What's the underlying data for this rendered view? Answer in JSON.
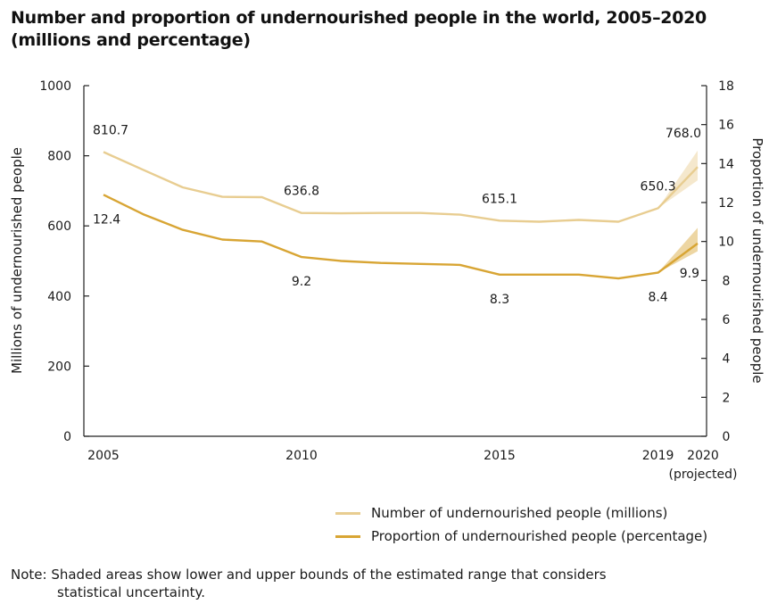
{
  "title": {
    "line1": "Number and proportion of undernourished people in the world, 2005–2020",
    "line2": "(millions and percentage)"
  },
  "colors": {
    "number_series": "#e8cd91",
    "proportion_series": "#d8a534",
    "axis": "#222222"
  },
  "chart_data": {
    "type": "line",
    "x": [
      2005,
      2006,
      2007,
      2008,
      2009,
      2010,
      2011,
      2012,
      2013,
      2014,
      2015,
      2016,
      2017,
      2018,
      2019,
      2020
    ],
    "x_tick_labels": [
      {
        "x": 2005,
        "label": "2005"
      },
      {
        "x": 2010,
        "label": "2010"
      },
      {
        "x": 2015,
        "label": "2015"
      },
      {
        "x": 2019,
        "label": "2019"
      },
      {
        "x": 2020,
        "label": "2020",
        "sublabel": "(projected)"
      }
    ],
    "y_left": {
      "label": "Millions of undernourished people",
      "lim": [
        0,
        1000
      ],
      "ticks": [
        "0",
        "200",
        "400",
        "600",
        "800",
        "1000"
      ]
    },
    "y_right": {
      "label": "Proportion of undernourished people",
      "lim": [
        0,
        18
      ],
      "ticks": [
        "0",
        "2",
        "4",
        "6",
        "8",
        "10",
        "12",
        "14",
        "16",
        "18"
      ]
    },
    "series": [
      {
        "name": "Number of undernourished people (millions)",
        "axis": "left",
        "values": [
          810.7,
          760,
          710,
          683,
          682,
          636.8,
          636,
          637,
          637,
          632,
          615.1,
          612,
          617,
          612,
          650.3,
          768.0
        ],
        "band_2020": [
          730,
          815
        ]
      },
      {
        "name": "Proportion of undernourished people (percentage)",
        "axis": "right",
        "values": [
          12.4,
          11.4,
          10.6,
          10.1,
          10.0,
          9.2,
          9.0,
          8.9,
          8.85,
          8.8,
          8.3,
          8.3,
          8.3,
          8.1,
          8.4,
          9.9
        ],
        "band_2020": [
          9.5,
          10.7
        ]
      }
    ],
    "data_labels": [
      {
        "series": 0,
        "x": 2005,
        "label": "810.7",
        "position": "above"
      },
      {
        "series": 0,
        "x": 2010,
        "label": "636.8",
        "position": "above"
      },
      {
        "series": 0,
        "x": 2015,
        "label": "615.1",
        "position": "above"
      },
      {
        "series": 0,
        "x": 2019,
        "label": "650.3",
        "position": "above"
      },
      {
        "series": 0,
        "x": 2020,
        "label": "768.0",
        "position": "above"
      },
      {
        "series": 1,
        "x": 2005,
        "label": "12.4",
        "position": "below"
      },
      {
        "series": 1,
        "x": 2010,
        "label": "9.2",
        "position": "below"
      },
      {
        "series": 1,
        "x": 2015,
        "label": "8.3",
        "position": "below"
      },
      {
        "series": 1,
        "x": 2019,
        "label": "8.4",
        "position": "below"
      },
      {
        "series": 1,
        "x": 2020,
        "label": "9.9",
        "position": "below"
      }
    ],
    "grid": false,
    "legend_position": "bottom-right"
  },
  "note": {
    "line1": "Note: Shaded areas show lower and upper bounds of the estimated range that considers",
    "line2": "statistical uncertainty."
  }
}
